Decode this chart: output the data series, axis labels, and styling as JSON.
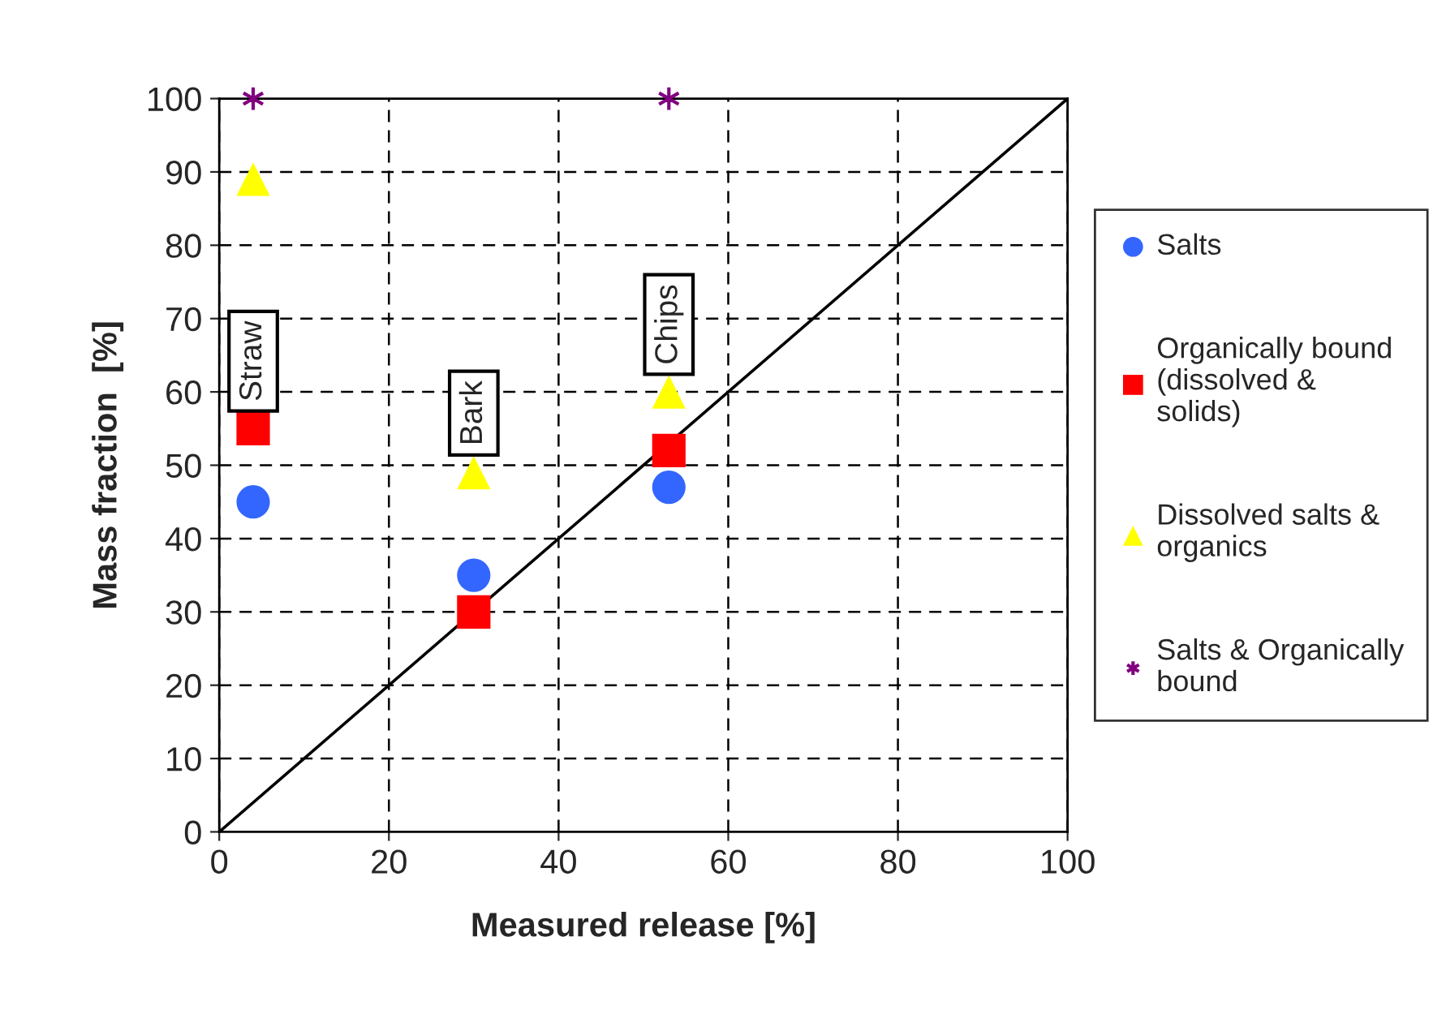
{
  "chart_data": {
    "type": "scatter",
    "xlabel": "Measured release [%]",
    "ylabel": "Mass fraction  [%]",
    "xlim": [
      0,
      100
    ],
    "ylim": [
      0,
      100
    ],
    "xticks": [
      0,
      20,
      40,
      60,
      80,
      100
    ],
    "yticks": [
      0,
      10,
      20,
      30,
      40,
      50,
      60,
      70,
      80,
      90,
      100
    ],
    "grid": true,
    "legend": "right",
    "series": [
      {
        "name": "Salts",
        "color": "#3366ff",
        "marker": "circle",
        "x": [
          4,
          30,
          53
        ],
        "values": [
          45,
          35,
          47
        ]
      },
      {
        "name": "Organically bound (dissolved & solids)",
        "color": "#ff0000",
        "marker": "square",
        "x": [
          4,
          30,
          53
        ],
        "values": [
          55,
          30,
          52
        ]
      },
      {
        "name": "Dissolved salts & organics",
        "color": "#ffff00",
        "marker": "triangle",
        "x": [
          4,
          30,
          53
        ],
        "values": [
          89,
          49,
          60
        ]
      },
      {
        "name": "Salts & Organically bound",
        "color": "#800080",
        "marker": "cross",
        "x": [
          4,
          53
        ],
        "values": [
          100,
          100
        ]
      },
      {
        "type": "line",
        "color": "#000000",
        "x": [
          0,
          100
        ],
        "values": [
          0,
          100
        ]
      }
    ],
    "annotations": [
      {
        "text": "Straw",
        "x": 4,
        "y": 55
      },
      {
        "text": "Bark",
        "x": 30,
        "y": 49
      },
      {
        "text": "Chips",
        "x": 53,
        "y": 60
      }
    ]
  }
}
